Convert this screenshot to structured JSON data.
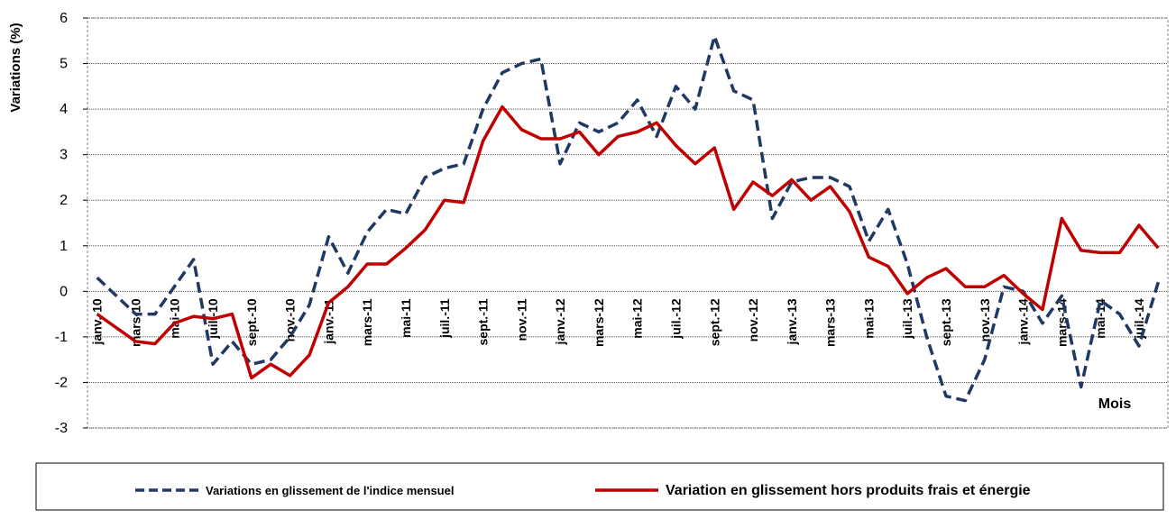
{
  "chart_data": {
    "type": "line",
    "y_label": "Variations (%)",
    "x_label": "Mois",
    "categories": [
      "janv.-10",
      null,
      "mars-10",
      null,
      "mai-10",
      null,
      "juil.-10",
      null,
      "sept.-10",
      null,
      "nov.-10",
      null,
      "janv.-11",
      null,
      "mars-11",
      null,
      "mai-11",
      null,
      "juil.-11",
      null,
      "sept.-11",
      null,
      "nov.-11",
      null,
      "janv.-12",
      null,
      "mars-12",
      null,
      "mai-12",
      null,
      "juil.-12",
      null,
      "sept.-12",
      null,
      "nov.-12",
      null,
      "janv.-13",
      null,
      "mars-13",
      null,
      "mai-13",
      null,
      "juil.-13",
      null,
      "sept.-13",
      null,
      "nov.-13",
      null,
      "janv.-14",
      null,
      "mars-14",
      null,
      "mai-14",
      null,
      "juil.-14",
      null
    ],
    "series": [
      {
        "name": "Variations en glissement de l'indice mensuel",
        "color": "#1f3864",
        "dash": true,
        "values": [
          0.3,
          -0.1,
          -0.5,
          -0.5,
          0.1,
          0.7,
          -1.6,
          -1.1,
          -1.6,
          -1.5,
          -1.0,
          -0.3,
          1.2,
          0.4,
          1.3,
          1.8,
          1.7,
          2.5,
          2.7,
          2.8,
          4.0,
          4.8,
          5.0,
          5.1,
          2.8,
          3.7,
          3.5,
          3.7,
          4.2,
          3.4,
          4.5,
          4.0,
          5.6,
          4.4,
          4.2,
          1.6,
          2.4,
          2.5,
          2.5,
          2.3,
          1.1,
          1.8,
          0.6,
          -1.0,
          -2.3,
          -2.4,
          -1.5,
          0.1,
          0.0,
          -0.7,
          -0.1,
          -2.1,
          -0.2,
          -0.5,
          -1.2,
          0.2
        ]
      },
      {
        "name": "Variation en glissement hors produits frais et énergie",
        "color": "#c00000",
        "dash": false,
        "values": [
          -0.5,
          -0.8,
          -1.1,
          -1.15,
          -0.7,
          -0.55,
          -0.6,
          -0.5,
          -1.9,
          -1.6,
          -1.85,
          -1.4,
          -0.25,
          0.1,
          0.6,
          0.6,
          0.95,
          1.35,
          2.0,
          1.95,
          3.3,
          4.05,
          3.55,
          3.35,
          3.35,
          3.5,
          3.0,
          3.4,
          3.5,
          3.7,
          3.2,
          2.8,
          3.15,
          1.8,
          2.4,
          2.1,
          2.45,
          2.0,
          2.3,
          1.75,
          0.75,
          0.55,
          -0.05,
          0.3,
          0.5,
          0.1,
          0.1,
          0.35,
          -0.05,
          -0.4,
          1.6,
          0.9,
          0.85,
          0.85,
          1.45,
          0.95
        ]
      }
    ],
    "ylim": [
      -3,
      6
    ],
    "yticks": [
      -3,
      -2,
      -1,
      0,
      1,
      2,
      3,
      4,
      5,
      6
    ],
    "grid": true
  }
}
